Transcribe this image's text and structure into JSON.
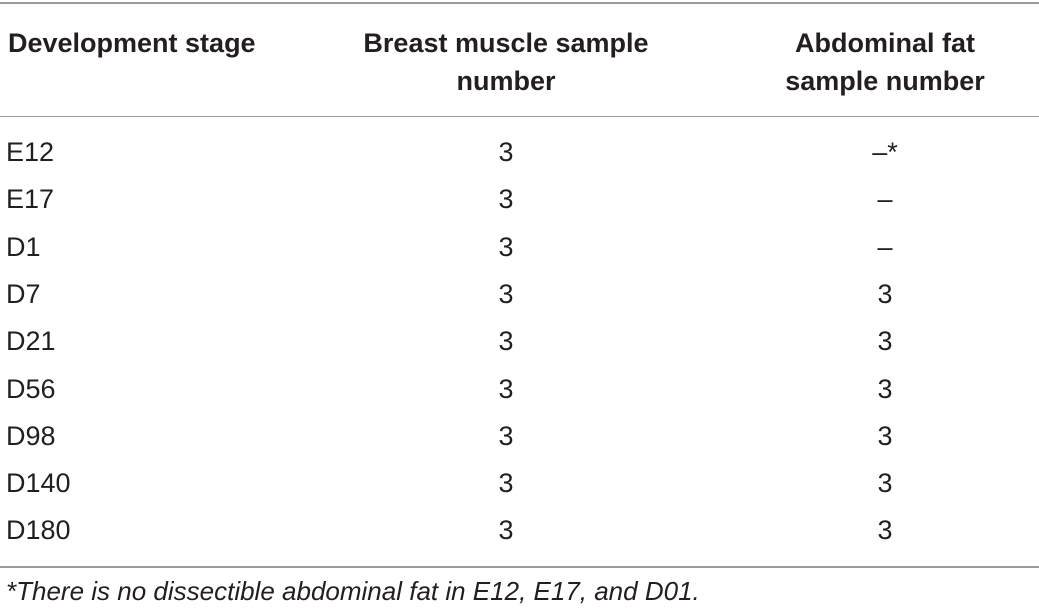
{
  "table": {
    "headers": {
      "stage": "Development stage",
      "breast_line1": "Breast muscle sample",
      "breast_line2": "number",
      "fat_line1": "Abdominal fat",
      "fat_line2": "sample number"
    },
    "rows": [
      {
        "stage": "E12",
        "breast": "3",
        "fat": "–*"
      },
      {
        "stage": "E17",
        "breast": "3",
        "fat": "–"
      },
      {
        "stage": "D1",
        "breast": "3",
        "fat": "–"
      },
      {
        "stage": "D7",
        "breast": "3",
        "fat": "3"
      },
      {
        "stage": "D21",
        "breast": "3",
        "fat": "3"
      },
      {
        "stage": "D56",
        "breast": "3",
        "fat": "3"
      },
      {
        "stage": "D98",
        "breast": "3",
        "fat": "3"
      },
      {
        "stage": "D140",
        "breast": "3",
        "fat": "3"
      },
      {
        "stage": "D180",
        "breast": "3",
        "fat": "3"
      }
    ],
    "footnote": "*There is no dissectible abdominal fat in E12, E17, and D01."
  }
}
